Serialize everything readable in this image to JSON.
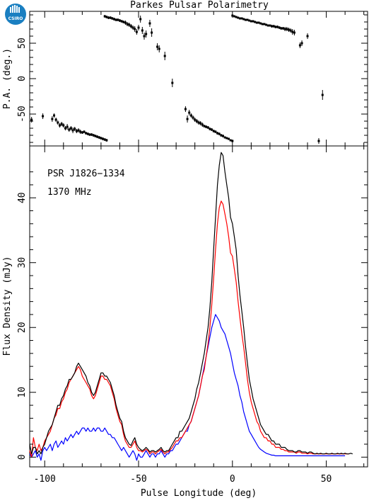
{
  "header": {
    "title": "Parkes Pulsar Polarimetry",
    "logo_text": "CSIRO"
  },
  "chart_data": [
    {
      "panel": "position-angle",
      "type": "scatter",
      "ylabel": "P.A. (deg.)",
      "xlim": [
        -108,
        72
      ],
      "ylim": [
        -95,
        95
      ],
      "yticks": [
        -50,
        0,
        50
      ],
      "errorbars": true,
      "points": [
        [
          -107,
          -58,
          4
        ],
        [
          -101,
          -53,
          4
        ],
        [
          -96,
          -57,
          4
        ],
        [
          -95,
          -52,
          3
        ],
        [
          -94,
          -58,
          3
        ],
        [
          -93,
          -62,
          3
        ],
        [
          -92,
          -66,
          3
        ],
        [
          -91,
          -64,
          3
        ],
        [
          -90,
          -66,
          3
        ],
        [
          -89,
          -70,
          3
        ],
        [
          -88,
          -68,
          4
        ],
        [
          -87,
          -72,
          3
        ],
        [
          -86,
          -70,
          3
        ],
        [
          -85,
          -73,
          4
        ],
        [
          -84,
          -71,
          3
        ],
        [
          -83,
          -74,
          3
        ],
        [
          -82,
          -73,
          3
        ],
        [
          -81,
          -75,
          3
        ],
        [
          -80,
          -76,
          2
        ],
        [
          -79,
          -75,
          2
        ],
        [
          -78,
          -77,
          2
        ],
        [
          -77,
          -78,
          2
        ],
        [
          -76,
          -79,
          2
        ],
        [
          -75,
          -79,
          2
        ],
        [
          -74,
          -80,
          2
        ],
        [
          -73,
          -81,
          2
        ],
        [
          -72,
          -82,
          2
        ],
        [
          -71,
          -83,
          2
        ],
        [
          -70,
          -84,
          2
        ],
        [
          -69,
          -85,
          2
        ],
        [
          -68,
          -86,
          2
        ],
        [
          -67,
          -87,
          2
        ],
        [
          -68,
          88,
          2
        ],
        [
          -67,
          87,
          2
        ],
        [
          -66,
          86,
          2
        ],
        [
          -65,
          86,
          2
        ],
        [
          -64,
          85,
          2
        ],
        [
          -63,
          84,
          2
        ],
        [
          -62,
          83,
          2
        ],
        [
          -61,
          83,
          2
        ],
        [
          -60,
          82,
          2
        ],
        [
          -59,
          81,
          2
        ],
        [
          -58,
          80,
          2
        ],
        [
          -57,
          79,
          3
        ],
        [
          -56,
          77,
          3
        ],
        [
          -55,
          76,
          3
        ],
        [
          -54,
          74,
          3
        ],
        [
          -53,
          72,
          3
        ],
        [
          -52,
          70,
          4
        ],
        [
          -51,
          66,
          4
        ],
        [
          -50,
          72,
          4
        ],
        [
          -49,
          84,
          5
        ],
        [
          -48,
          68,
          5
        ],
        [
          -47,
          60,
          5
        ],
        [
          -46,
          63,
          5
        ],
        [
          -44,
          78,
          5
        ],
        [
          -43,
          65,
          6
        ],
        [
          -40,
          45,
          5
        ],
        [
          -39,
          42,
          5
        ],
        [
          -36,
          32,
          6
        ],
        [
          -32,
          -6,
          6
        ],
        [
          -25,
          -43,
          4
        ],
        [
          -24,
          -57,
          5
        ],
        [
          -23,
          -48,
          4
        ],
        [
          -22,
          -52,
          3
        ],
        [
          -21,
          -55,
          3
        ],
        [
          -20,
          -58,
          3
        ],
        [
          -19,
          -60,
          3
        ],
        [
          -18,
          -62,
          3
        ],
        [
          -17,
          -63,
          3
        ],
        [
          -16,
          -65,
          3
        ],
        [
          -15,
          -67,
          2
        ],
        [
          -14,
          -68,
          2
        ],
        [
          -13,
          -69,
          2
        ],
        [
          -12,
          -71,
          2
        ],
        [
          -11,
          -72,
          2
        ],
        [
          -10,
          -74,
          2
        ],
        [
          -9,
          -75,
          2
        ],
        [
          -8,
          -77,
          2
        ],
        [
          -7,
          -78,
          2
        ],
        [
          -6,
          -80,
          2
        ],
        [
          -5,
          -81,
          2
        ],
        [
          -4,
          -83,
          1
        ],
        [
          -3,
          -84,
          1
        ],
        [
          -2,
          -85,
          1
        ],
        [
          -1,
          -87,
          1
        ],
        [
          0,
          -88,
          1
        ],
        [
          0,
          89,
          1
        ],
        [
          1,
          88,
          1
        ],
        [
          2,
          87,
          1
        ],
        [
          3,
          86,
          1
        ],
        [
          4,
          85,
          1
        ],
        [
          5,
          85,
          1
        ],
        [
          6,
          84,
          1
        ],
        [
          7,
          83,
          1
        ],
        [
          8,
          83,
          1
        ],
        [
          9,
          82,
          1
        ],
        [
          10,
          81,
          1
        ],
        [
          11,
          81,
          1
        ],
        [
          12,
          80,
          1
        ],
        [
          13,
          79,
          1
        ],
        [
          14,
          79,
          1
        ],
        [
          15,
          78,
          1
        ],
        [
          16,
          77,
          1
        ],
        [
          17,
          77,
          1
        ],
        [
          18,
          76,
          1
        ],
        [
          19,
          75,
          1
        ],
        [
          20,
          75,
          1
        ],
        [
          21,
          74,
          2
        ],
        [
          22,
          74,
          2
        ],
        [
          23,
          73,
          2
        ],
        [
          24,
          73,
          2
        ],
        [
          25,
          72,
          2
        ],
        [
          26,
          71,
          2
        ],
        [
          27,
          71,
          2
        ],
        [
          28,
          70,
          3
        ],
        [
          29,
          70,
          3
        ],
        [
          30,
          69,
          3
        ],
        [
          31,
          68,
          3
        ],
        [
          32,
          66,
          4
        ],
        [
          33,
          65,
          4
        ],
        [
          36,
          47,
          4
        ],
        [
          37,
          50,
          4
        ],
        [
          40,
          60,
          4
        ],
        [
          46,
          -88,
          4
        ],
        [
          48,
          -23,
          7
        ]
      ]
    },
    {
      "panel": "flux-profile",
      "type": "line",
      "xlabel": "Pulse Longitude (deg)",
      "ylabel": "Flux Density (mJy)",
      "xlim": [
        -108,
        72
      ],
      "ylim": [
        -1.5,
        48
      ],
      "xticks": [
        -100,
        -50,
        0,
        50
      ],
      "yticks": [
        0,
        10,
        20,
        30,
        40
      ],
      "annotations": [
        "PSR J1826−1334",
        "1370 MHz"
      ],
      "x_start": -108,
      "x_step": 1,
      "series": [
        {
          "color": "#000000",
          "values": [
            2.0,
            0.5,
            1.5,
            1.5,
            0.5,
            1.0,
            0.5,
            1.5,
            2.0,
            3.0,
            4.0,
            4.5,
            5.0,
            6.0,
            7.0,
            8.0,
            8.0,
            9.0,
            9.5,
            10.5,
            11.0,
            12.0,
            12.0,
            12.5,
            13.0,
            14.0,
            14.5,
            14.0,
            13.5,
            13.0,
            12.5,
            11.5,
            11.0,
            10.0,
            9.5,
            10.0,
            11.0,
            12.0,
            13.0,
            13.0,
            12.5,
            12.5,
            12.0,
            11.5,
            10.5,
            9.5,
            8.0,
            7.0,
            6.0,
            5.5,
            4.0,
            3.0,
            2.5,
            2.0,
            1.8,
            2.5,
            3.0,
            2.0,
            1.5,
            1.2,
            1.0,
            1.2,
            1.5,
            1.2,
            0.8,
            1.0,
            1.0,
            0.8,
            1.0,
            1.2,
            1.5,
            1.0,
            0.8,
            1.0,
            1.0,
            1.5,
            2.0,
            2.5,
            3.0,
            3.0,
            4.0,
            4.0,
            4.5,
            5.0,
            5.5,
            6.0,
            7.0,
            8.0,
            9.0,
            10.5,
            11.5,
            13.0,
            14.5,
            16.0,
            18.0,
            20.0,
            23.0,
            27.0,
            32.0,
            37.0,
            42.0,
            45.0,
            47.0,
            46.5,
            44.0,
            42.0,
            40.0,
            37.0,
            36.0,
            34.0,
            32.0,
            28.0,
            25.0,
            22.5,
            20.0,
            17.0,
            14.5,
            12.0,
            10.5,
            9.0,
            8.0,
            7.0,
            6.0,
            5.0,
            4.5,
            4.0,
            3.5,
            3.5,
            3.0,
            2.5,
            2.5,
            2.0,
            2.0,
            2.0,
            1.5,
            1.5,
            1.5,
            1.2,
            1.0,
            1.0,
            1.0,
            0.8,
            0.8,
            1.0,
            1.0,
            0.8,
            0.8,
            0.8,
            0.6,
            0.8,
            0.8,
            0.6,
            0.5,
            0.6,
            0.5,
            0.6,
            0.5,
            0.5,
            0.6,
            0.5,
            0.5,
            0.6,
            0.5,
            0.5,
            0.6,
            0.5,
            0.6,
            0.5,
            0.6,
            0.5,
            0.5,
            0.6,
            0.5
          ]
        },
        {
          "color": "#ff0000",
          "values": [
            1.0,
            0.0,
            3.0,
            1.5,
            1.0,
            2.0,
            1.0,
            1.5,
            2.5,
            3.0,
            3.5,
            4.0,
            5.0,
            6.0,
            6.5,
            7.5,
            7.5,
            8.5,
            9.0,
            10.0,
            10.5,
            11.5,
            12.0,
            12.5,
            13.0,
            13.5,
            14.0,
            13.5,
            12.5,
            12.0,
            11.5,
            11.0,
            10.5,
            9.5,
            9.0,
            9.5,
            10.5,
            11.5,
            12.5,
            12.5,
            12.0,
            12.0,
            11.5,
            11.0,
            10.0,
            9.0,
            7.5,
            6.5,
            5.5,
            5.0,
            3.5,
            2.5,
            2.0,
            1.5,
            1.5,
            2.0,
            2.5,
            1.5,
            1.0,
            1.0,
            0.8,
            1.0,
            1.2,
            1.0,
            0.5,
            0.8,
            0.8,
            0.5,
            0.8,
            1.0,
            1.2,
            0.8,
            0.5,
            0.8,
            0.8,
            1.2,
            1.5,
            2.0,
            2.5,
            2.5,
            3.0,
            3.0,
            3.5,
            4.0,
            4.5,
            5.0,
            5.5,
            6.5,
            7.5,
            8.5,
            9.5,
            11.0,
            12.5,
            13.5,
            15.5,
            17.5,
            20.0,
            23.5,
            27.5,
            32.0,
            36.0,
            38.5,
            39.5,
            39.0,
            37.5,
            36.0,
            34.0,
            31.5,
            31.0,
            29.0,
            27.0,
            24.0,
            21.5,
            19.0,
            17.0,
            14.5,
            12.0,
            10.0,
            8.5,
            7.5,
            6.5,
            5.5,
            5.0,
            4.0,
            3.5,
            3.0,
            3.0,
            2.5,
            2.5,
            2.0,
            2.0,
            1.5,
            1.5,
            1.5,
            1.2,
            1.2,
            1.0,
            1.0,
            0.8,
            0.8,
            0.8,
            0.8,
            0.6,
            0.8,
            0.8,
            0.6,
            0.6,
            0.6,
            0.5,
            0.6,
            0.6,
            0.5,
            0.5,
            0.5,
            0.5,
            0.5,
            0.5,
            0.5,
            0.5,
            0.5,
            0.5,
            0.5,
            0.5,
            0.5,
            0.5,
            0.5,
            0.5,
            0.5,
            0.5,
            0.5,
            0.5
          ]
        },
        {
          "color": "#0000ff",
          "values": [
            0.5,
            0.0,
            0.5,
            1.0,
            0.0,
            0.5,
            -0.5,
            1.0,
            1.5,
            1.0,
            1.5,
            2.0,
            1.0,
            2.0,
            2.5,
            1.5,
            2.0,
            2.5,
            2.0,
            3.0,
            2.5,
            3.0,
            3.5,
            3.0,
            3.5,
            4.0,
            3.5,
            4.0,
            4.5,
            4.5,
            4.0,
            4.5,
            4.0,
            4.0,
            4.5,
            4.0,
            4.5,
            4.5,
            4.0,
            4.0,
            4.5,
            4.0,
            3.5,
            3.5,
            3.0,
            3.0,
            2.5,
            2.0,
            1.5,
            1.0,
            1.5,
            1.0,
            0.5,
            0.0,
            0.5,
            1.0,
            0.5,
            -0.5,
            0.5,
            0.0,
            0.0,
            0.5,
            1.0,
            0.5,
            0.0,
            0.5,
            0.5,
            0.0,
            0.5,
            0.5,
            1.0,
            0.5,
            0.0,
            0.5,
            0.5,
            1.0,
            1.0,
            1.5,
            2.0,
            2.0,
            2.5,
            3.0,
            3.5,
            4.0,
            4.0,
            5.0,
            5.5,
            6.5,
            7.5,
            8.5,
            9.5,
            11.0,
            12.5,
            14.0,
            15.5,
            17.0,
            18.5,
            20.0,
            21.0,
            22.0,
            21.5,
            21.0,
            20.0,
            19.5,
            19.0,
            18.0,
            17.0,
            16.0,
            14.5,
            13.0,
            12.0,
            11.0,
            9.5,
            8.5,
            7.0,
            6.0,
            5.0,
            4.0,
            3.5,
            3.0,
            2.5,
            2.0,
            1.5,
            1.2,
            1.0,
            0.8,
            0.6,
            0.5,
            0.4,
            0.3,
            0.3,
            0.2,
            0.2,
            0.2,
            0.2,
            0.2,
            0.2,
            0.2,
            0.2,
            0.2,
            0.2,
            0.2,
            0.2,
            0.2,
            0.2,
            0.2,
            0.2,
            0.2,
            0.2,
            0.2,
            0.2,
            0.2,
            0.2,
            0.2,
            0.2,
            0.2,
            0.2,
            0.2,
            0.2,
            0.2,
            0.2,
            0.2,
            0.2,
            0.2,
            0.2,
            0.2,
            0.2,
            0.2,
            0.2
          ]
        }
      ]
    }
  ]
}
